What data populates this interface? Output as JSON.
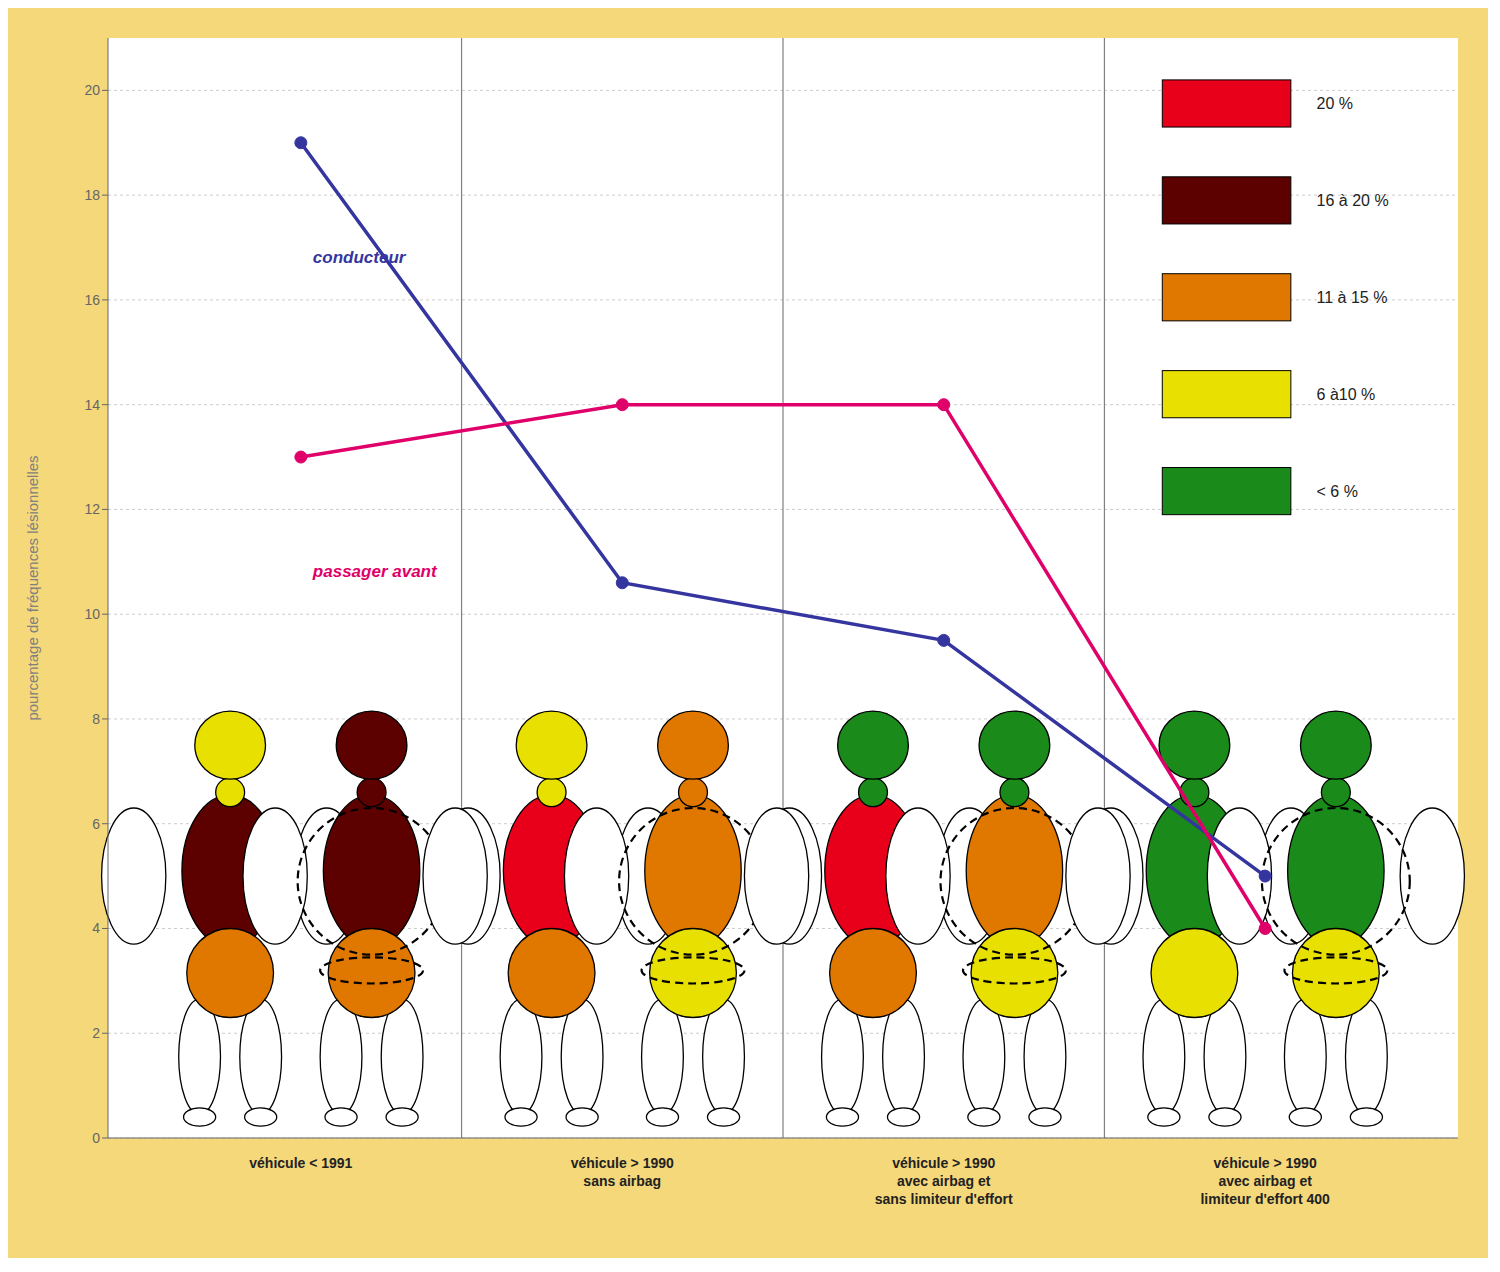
{
  "chart_data": {
    "type": "line",
    "y_label": "pourcentage de fréquences lésionnelles",
    "categories": [
      "véhicule < 1991",
      "véhicule > 1990\nsans airbag",
      "véhicule > 1990\navec airbag et\nsans limiteur d'effort",
      "véhicule > 1990\navec airbag et\nlimiteur d'effort 400"
    ],
    "series": [
      {
        "name": "conducteur",
        "color": "#3535A0",
        "values": [
          19.0,
          10.6,
          9.5,
          5.0
        ]
      },
      {
        "name": "passager avant",
        "color": "#E0006A",
        "values": [
          13.0,
          14.0,
          14.0,
          4.0
        ]
      }
    ],
    "ylim": [
      0,
      21
    ],
    "yticks": [
      0,
      2,
      4,
      6,
      8,
      10,
      12,
      14,
      16,
      18,
      20
    ],
    "grid": true,
    "color_legend": [
      {
        "color": "#E8001A",
        "label": "20 %"
      },
      {
        "color": "#5C0000",
        "label": "16 à 20 %"
      },
      {
        "color": "#E07800",
        "label": "11 à 15 %"
      },
      {
        "color": "#E8E000",
        "label": "6 à10 %"
      },
      {
        "color": "#1A8A1A",
        "label": "< 6 %"
      }
    ],
    "figures": [
      {
        "head": "#E8E000",
        "torso": "#5C0000",
        "pelvis": "#E07800",
        "neck": "#E8E000",
        "airbag": false
      },
      {
        "head": "#5C0000",
        "torso": "#5C0000",
        "pelvis": "#E07800",
        "neck": "#5C0000",
        "airbag": true
      },
      {
        "head": "#E8E000",
        "torso": "#E8001A",
        "pelvis": "#E07800",
        "neck": "#E8E000",
        "airbag": false
      },
      {
        "head": "#E07800",
        "torso": "#E07800",
        "pelvis": "#E8E000",
        "neck": "#E07800",
        "airbag": true
      },
      {
        "head": "#1A8A1A",
        "torso": "#E8001A",
        "pelvis": "#E07800",
        "neck": "#1A8A1A",
        "airbag": false
      },
      {
        "head": "#1A8A1A",
        "torso": "#E07800",
        "pelvis": "#E8E000",
        "neck": "#1A8A1A",
        "airbag": true
      },
      {
        "head": "#1A8A1A",
        "torso": "#1A8A1A",
        "pelvis": "#E8E000",
        "neck": "#1A8A1A",
        "airbag": false
      },
      {
        "head": "#1A8A1A",
        "torso": "#1A8A1A",
        "pelvis": "#E8E000",
        "neck": "#1A8A1A",
        "airbag": true
      }
    ]
  }
}
